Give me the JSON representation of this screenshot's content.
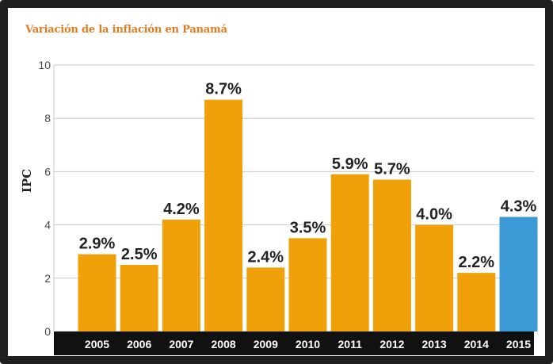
{
  "chart_data": {
    "type": "bar",
    "title": "Variación de la inflación en Panamá",
    "ylabel": "IPC",
    "xlabel": "",
    "categories": [
      "2005",
      "2006",
      "2007",
      "2008",
      "2009",
      "2010",
      "2011",
      "2012",
      "2013",
      "2014",
      "2015"
    ],
    "values": [
      2.9,
      2.5,
      4.2,
      8.7,
      2.4,
      3.5,
      5.9,
      5.7,
      4.0,
      2.2,
      4.3
    ],
    "data_labels": [
      "2.9%",
      "2.5%",
      "4.2%",
      "8.7%",
      "2.4%",
      "3.5%",
      "5.9%",
      "5.7%",
      "4.0%",
      "2.2%",
      "4.3%"
    ],
    "ylim": [
      0,
      10
    ],
    "yticks": [
      0,
      2,
      4,
      6,
      8,
      10
    ],
    "grid": true,
    "colors": {
      "default_bar": "#f0a10a",
      "highlight_bar": "#3c9ad6",
      "title": "#e07b1f",
      "axis_band": "#111111"
    },
    "highlight_index": 10
  }
}
